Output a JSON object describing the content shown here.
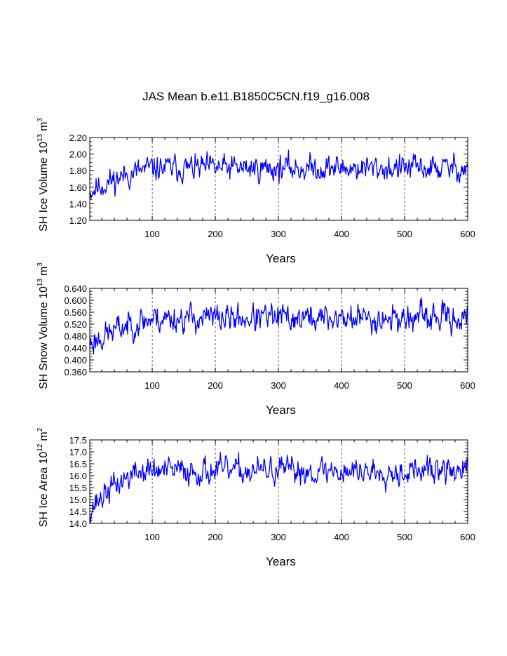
{
  "figure": {
    "title": "JAS Mean b.e11.B1850C5CN.f19_g16.008"
  },
  "chart_data": [
    {
      "type": "line",
      "title": "JAS Mean b.e11.B1850C5CN.f19_g16.008",
      "xlabel": "Years",
      "ylabel": "SH Ice Volume 10",
      "ylabel_exp": "13",
      "ylabel_unit": "m",
      "ylabel_unit_exp": "3",
      "xlim": [
        1,
        600
      ],
      "ylim": [
        1.2,
        2.2
      ],
      "xticks": [
        100,
        200,
        300,
        400,
        500,
        600
      ],
      "yticks": [
        1.2,
        1.4,
        1.6,
        1.8,
        2.0,
        2.2
      ],
      "yticklabels": [
        "1.20",
        "1.40",
        "1.60",
        "1.80",
        "2.00",
        "2.20"
      ],
      "grid": "dashed vertical at 100-year ticks",
      "series": [
        {
          "name": "SH Ice Volume",
          "color": "#0000ff",
          "generator": {
            "base": 1.83,
            "start": 1.55,
            "early_end": 110,
            "amp": 0.09,
            "seed": 11
          }
        }
      ]
    },
    {
      "type": "line",
      "xlabel": "Years",
      "ylabel": "SH Snow Volume 10",
      "ylabel_exp": "13",
      "ylabel_unit": "m",
      "ylabel_unit_exp": "3",
      "xlim": [
        1,
        600
      ],
      "ylim": [
        0.36,
        0.64
      ],
      "xticks": [
        100,
        200,
        300,
        400,
        500,
        600
      ],
      "yticks": [
        0.36,
        0.4,
        0.44,
        0.48,
        0.52,
        0.56,
        0.6,
        0.64
      ],
      "yticklabels": [
        "0.360",
        "0.400",
        "0.440",
        "0.480",
        "0.520",
        "0.560",
        "0.600",
        "0.640"
      ],
      "grid": "dashed vertical at 100-year ticks",
      "series": [
        {
          "name": "SH Snow Volume",
          "color": "#0000ff",
          "generator": {
            "base": 0.54,
            "start": 0.455,
            "early_end": 110,
            "amp": 0.027,
            "seed": 23
          }
        }
      ]
    },
    {
      "type": "line",
      "xlabel": "Years",
      "ylabel": "SH Ice Area 10",
      "ylabel_exp": "12",
      "ylabel_unit": "m",
      "ylabel_unit_exp": "2",
      "xlim": [
        1,
        600
      ],
      "ylim": [
        14.0,
        17.5
      ],
      "xticks": [
        100,
        200,
        300,
        400,
        500,
        600
      ],
      "yticks": [
        14.0,
        14.5,
        15.0,
        15.5,
        16.0,
        16.5,
        17.0,
        17.5
      ],
      "yticklabels": [
        "14.0",
        "14.5",
        "15.0",
        "15.5",
        "16.0",
        "16.5",
        "17.0",
        "17.5"
      ],
      "grid": "dashed vertical at 100-year ticks",
      "series": [
        {
          "name": "SH Ice Area",
          "color": "#0000ff",
          "generator": {
            "base": 16.2,
            "start": 14.6,
            "early_end": 90,
            "amp": 0.32,
            "seed": 37
          }
        }
      ]
    }
  ]
}
